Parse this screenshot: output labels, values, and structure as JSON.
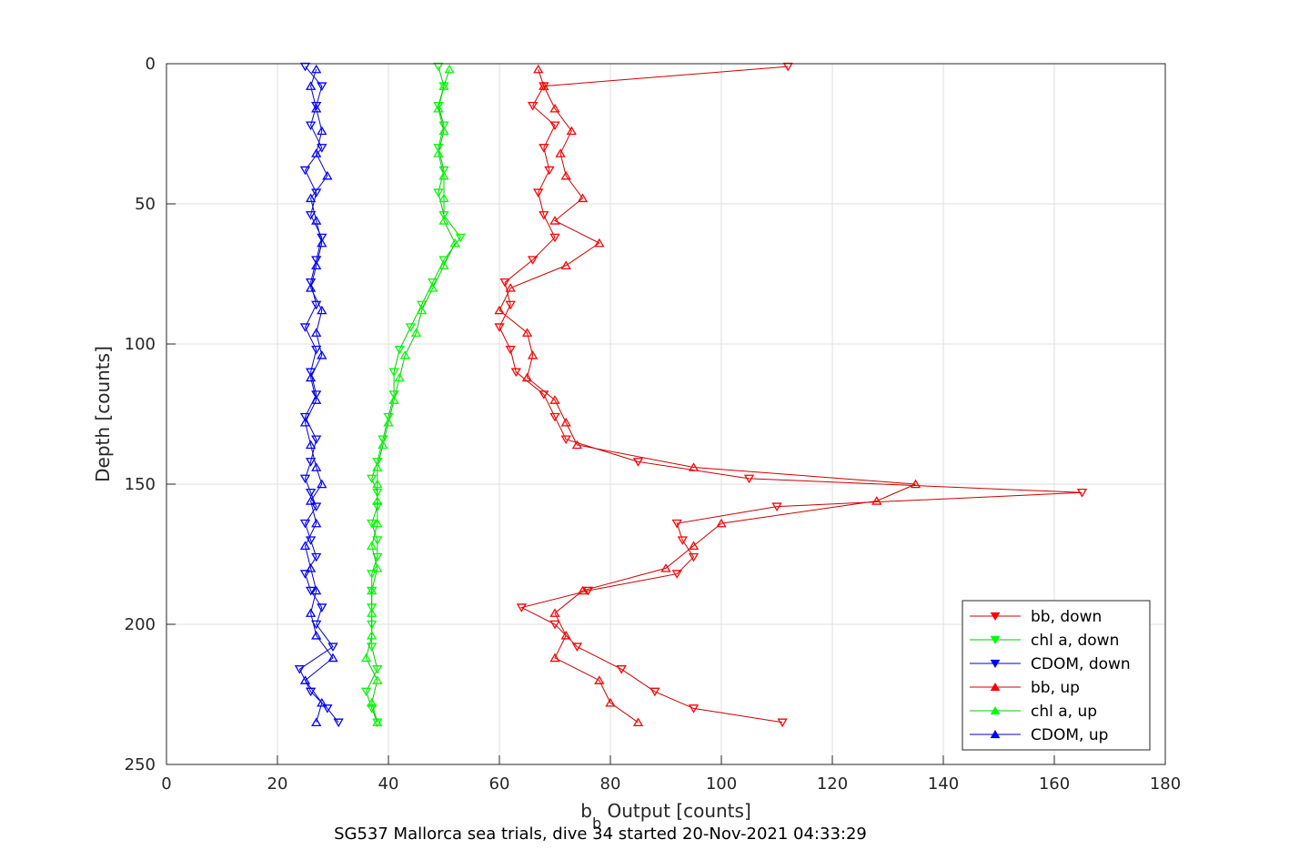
{
  "chart_data": {
    "type": "line",
    "title": "",
    "caption": "SG537 Mallorca sea trials, dive 34 started 20-Nov-2021 04:33:29",
    "xlabel_main": "b",
    "xlabel_sub": "b",
    "xlabel_rest": " Output [counts]",
    "ylabel": "Depth [counts]",
    "xlim": [
      0,
      180
    ],
    "ylim": [
      0,
      250
    ],
    "y_reversed": true,
    "grid": true,
    "legend_position": "bottom-right",
    "x_ticks": [
      "0",
      "20",
      "40",
      "60",
      "80",
      "100",
      "120",
      "140",
      "160",
      "180"
    ],
    "y_ticks": [
      "0",
      "50",
      "100",
      "150",
      "200",
      "250"
    ],
    "colors": {
      "bb": "#ff0000",
      "chl": "#00ff00",
      "cdom": "#0000ff",
      "bb_line": "#cc0000",
      "chl_line": "#00cc00",
      "cdom_line": "#0000cc"
    },
    "depth_down": [
      1,
      8,
      15,
      22,
      30,
      38,
      46,
      54,
      62,
      70,
      78,
      86,
      94,
      102,
      110,
      118,
      126,
      134,
      142,
      148,
      153,
      158,
      164,
      170,
      176,
      182,
      188,
      194,
      200,
      208,
      216,
      224,
      230,
      235
    ],
    "depth_up": [
      235,
      228,
      220,
      212,
      204,
      196,
      188,
      180,
      172,
      164,
      156,
      150,
      144,
      136,
      128,
      120,
      112,
      104,
      96,
      88,
      80,
      72,
      64,
      56,
      48,
      40,
      32,
      24,
      16,
      8,
      2
    ],
    "series": [
      {
        "name": "bb, down",
        "marker": "triangle-down",
        "color": "#cc0000",
        "values": [
          112,
          68,
          66,
          70,
          68,
          69,
          67,
          68,
          70,
          66,
          61,
          62,
          60,
          62,
          63,
          68,
          70,
          72,
          85,
          105,
          165,
          110,
          92,
          93,
          95,
          92,
          76,
          64,
          70,
          74,
          82,
          88,
          95,
          111
        ]
      },
      {
        "name": "chl a, down",
        "marker": "triangle-down",
        "color": "#00cc00",
        "values": [
          49,
          50,
          49,
          50,
          49,
          50,
          49,
          50,
          53,
          50,
          48,
          46,
          44,
          42,
          41,
          41,
          40,
          39,
          38,
          37,
          38,
          38,
          37,
          38,
          38,
          37,
          37,
          37,
          37,
          37,
          38,
          36,
          37,
          38
        ]
      },
      {
        "name": "CDOM, down",
        "marker": "triangle-down",
        "color": "#0000cc",
        "values": [
          25,
          28,
          27,
          26,
          28,
          25,
          27,
          26,
          28,
          27,
          26,
          27,
          25,
          27,
          26,
          27,
          25,
          27,
          26,
          25,
          26,
          27,
          25,
          26,
          27,
          25,
          26,
          28,
          27,
          30,
          24,
          26,
          29,
          31
        ]
      },
      {
        "name": "bb, up",
        "marker": "triangle-up",
        "color": "#cc0000",
        "values": [
          85,
          80,
          78,
          70,
          72,
          70,
          75,
          90,
          95,
          100,
          128,
          135,
          95,
          74,
          72,
          70,
          65,
          66,
          65,
          60,
          62,
          72,
          78,
          70,
          75,
          72,
          71,
          73,
          70,
          68,
          67
        ]
      },
      {
        "name": "chl a, up",
        "marker": "triangle-up",
        "color": "#00cc00",
        "values": [
          38,
          37,
          38,
          36,
          37,
          37,
          37,
          38,
          37,
          38,
          38,
          38,
          38,
          39,
          40,
          41,
          42,
          43,
          45,
          46,
          48,
          50,
          52,
          50,
          50,
          50,
          49,
          50,
          49,
          50,
          51
        ]
      },
      {
        "name": "CDOM, up",
        "marker": "triangle-up",
        "color": "#0000cc",
        "values": [
          27,
          28,
          25,
          30,
          27,
          26,
          27,
          26,
          25,
          27,
          26,
          28,
          27,
          26,
          25,
          27,
          26,
          28,
          27,
          28,
          26,
          27,
          28,
          27,
          26,
          29,
          27,
          28,
          27,
          26,
          27
        ]
      }
    ]
  }
}
